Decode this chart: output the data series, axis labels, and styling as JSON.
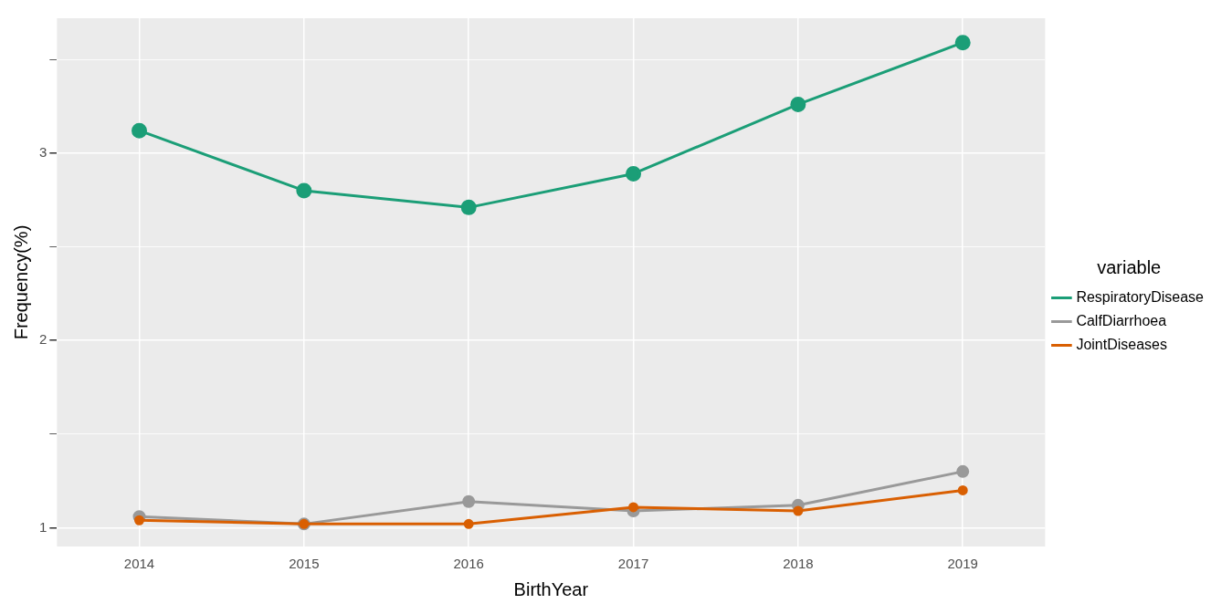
{
  "chart_data": {
    "type": "line",
    "xlabel": "BirthYear",
    "ylabel": "Frequency(%)",
    "legend_title": "variable",
    "categories": [
      "2014",
      "2015",
      "2016",
      "2017",
      "2018",
      "2019"
    ],
    "series": [
      {
        "name": "RespiratoryDisease",
        "color": "#1b9e77",
        "values": [
          3.12,
          2.8,
          2.71,
          2.89,
          3.26,
          3.59
        ]
      },
      {
        "name": "CalfDiarrhoea",
        "color": "#999999",
        "values": [
          1.06,
          1.02,
          1.14,
          1.09,
          1.12,
          1.3
        ]
      },
      {
        "name": "JointDiseases",
        "color": "#d95f02",
        "values": [
          1.04,
          1.02,
          1.02,
          1.11,
          1.09,
          1.2
        ]
      }
    ],
    "ylim": [
      0.9,
      3.72
    ],
    "yticks": [
      1,
      {
        "value": 1.5,
        "label": null
      },
      2,
      {
        "value": 2.5,
        "label": null
      },
      3,
      {
        "value": 3.5,
        "label": null
      }
    ],
    "grid": true,
    "legend": "right",
    "marker": "circle",
    "line_style": "solid"
  }
}
